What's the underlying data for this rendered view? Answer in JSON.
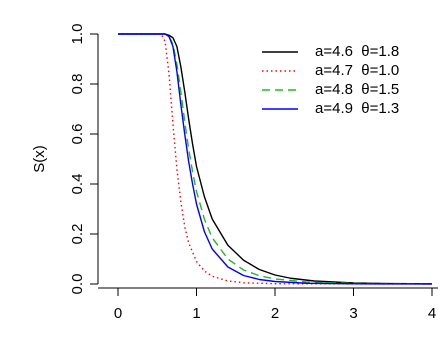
{
  "chart_data": {
    "type": "line",
    "ylabel": "S(x)",
    "xlabel": "",
    "xlim": [
      0,
      4
    ],
    "ylim": [
      0,
      1
    ],
    "x_ticks": [
      0,
      1,
      2,
      3,
      4
    ],
    "y_ticks": [
      0.0,
      0.2,
      0.4,
      0.6,
      0.8,
      1.0
    ],
    "x_tick_labels": [
      "0",
      "1",
      "2",
      "3",
      "4"
    ],
    "y_tick_labels": [
      "0.0",
      "0.2",
      "0.4",
      "0.6",
      "0.8",
      "1.0"
    ],
    "grid": false,
    "legend_position": "top-right",
    "series": [
      {
        "name": "a=4.6  θ=1.8",
        "color": "#000000",
        "dash": "solid",
        "points": [
          [
            0.0,
            1.0
          ],
          [
            0.6,
            1.0
          ],
          [
            0.65,
            0.995
          ],
          [
            0.7,
            0.985
          ],
          [
            0.75,
            0.95
          ],
          [
            0.8,
            0.87
          ],
          [
            0.85,
            0.77
          ],
          [
            0.9,
            0.66
          ],
          [
            0.95,
            0.56
          ],
          [
            1.0,
            0.47
          ],
          [
            1.1,
            0.35
          ],
          [
            1.2,
            0.26
          ],
          [
            1.4,
            0.155
          ],
          [
            1.6,
            0.095
          ],
          [
            1.8,
            0.058
          ],
          [
            2.0,
            0.036
          ],
          [
            2.2,
            0.023
          ],
          [
            2.5,
            0.012
          ],
          [
            3.0,
            0.004
          ],
          [
            3.5,
            0.0015
          ],
          [
            4.0,
            0.0005
          ]
        ]
      },
      {
        "name": "a=4.7  θ=1.0",
        "color": "#ff0000",
        "dash": "dotted",
        "points": [
          [
            0.0,
            1.0
          ],
          [
            0.55,
            1.0
          ],
          [
            0.6,
            0.97
          ],
          [
            0.65,
            0.84
          ],
          [
            0.7,
            0.64
          ],
          [
            0.75,
            0.46
          ],
          [
            0.8,
            0.33
          ],
          [
            0.85,
            0.23
          ],
          [
            0.9,
            0.165
          ],
          [
            1.0,
            0.09
          ],
          [
            1.1,
            0.052
          ],
          [
            1.2,
            0.031
          ],
          [
            1.4,
            0.012
          ],
          [
            1.6,
            0.005
          ],
          [
            2.0,
            0.001
          ],
          [
            4.0,
            0.0
          ]
        ]
      },
      {
        "name": "a=4.8  θ=1.5",
        "color": "#22bb22",
        "dash": "dashed",
        "points": [
          [
            0.0,
            1.0
          ],
          [
            0.6,
            1.0
          ],
          [
            0.65,
            0.99
          ],
          [
            0.7,
            0.96
          ],
          [
            0.75,
            0.88
          ],
          [
            0.8,
            0.77
          ],
          [
            0.85,
            0.65
          ],
          [
            0.9,
            0.54
          ],
          [
            0.95,
            0.45
          ],
          [
            1.0,
            0.37
          ],
          [
            1.1,
            0.26
          ],
          [
            1.2,
            0.185
          ],
          [
            1.4,
            0.1
          ],
          [
            1.6,
            0.056
          ],
          [
            1.8,
            0.033
          ],
          [
            2.0,
            0.02
          ],
          [
            2.4,
            0.008
          ],
          [
            3.0,
            0.002
          ],
          [
            4.0,
            0.0003
          ]
        ]
      },
      {
        "name": "a=4.9  θ=1.3",
        "color": "#0000ff",
        "dash": "solid",
        "points": [
          [
            0.0,
            1.0
          ],
          [
            0.6,
            1.0
          ],
          [
            0.65,
            0.99
          ],
          [
            0.7,
            0.95
          ],
          [
            0.75,
            0.85
          ],
          [
            0.8,
            0.72
          ],
          [
            0.85,
            0.6
          ],
          [
            0.9,
            0.49
          ],
          [
            0.95,
            0.4
          ],
          [
            1.0,
            0.32
          ],
          [
            1.1,
            0.21
          ],
          [
            1.2,
            0.14
          ],
          [
            1.4,
            0.068
          ],
          [
            1.6,
            0.034
          ],
          [
            1.8,
            0.018
          ],
          [
            2.0,
            0.01
          ],
          [
            2.4,
            0.003
          ],
          [
            3.0,
            0.0008
          ],
          [
            4.0,
            0.0001
          ]
        ]
      }
    ]
  }
}
